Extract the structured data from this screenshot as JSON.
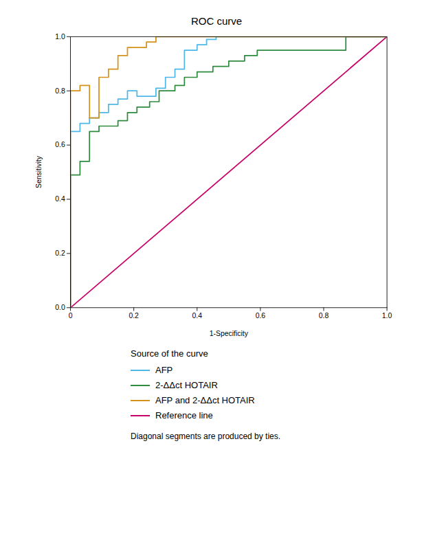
{
  "chart_data": {
    "type": "line",
    "title": "ROC curve",
    "xlabel": "1-Specificity",
    "ylabel": "Sensitivity",
    "xlim": [
      0,
      1.0
    ],
    "ylim": [
      0,
      1.0
    ],
    "xticks": [
      0,
      0.2,
      0.4,
      0.6,
      0.8,
      {
        "value": 1.0,
        "label": "1.0"
      }
    ],
    "yticks": [
      {
        "value": 0.0,
        "label": "0.0"
      },
      0.2,
      0.4,
      0.6,
      0.8,
      {
        "value": 1.0,
        "label": "1.0"
      }
    ],
    "grid": false,
    "legend": "bottom",
    "legend_title": "Source of the curve",
    "caption": "Diagonal segments are produced by ties.",
    "series": [
      {
        "name": "AFP",
        "color": "#4DB8E8",
        "x": [
          0.0,
          0.0,
          0.03,
          0.03,
          0.06,
          0.06,
          0.09,
          0.09,
          0.12,
          0.12,
          0.15,
          0.15,
          0.18,
          0.18,
          0.21,
          0.21,
          0.27,
          0.27,
          0.3,
          0.3,
          0.33,
          0.33,
          0.36,
          0.36,
          0.4,
          0.4,
          0.43,
          0.43,
          0.46,
          0.46,
          0.85,
          0.85,
          1.0
        ],
        "values": [
          0.0,
          0.65,
          0.65,
          0.68,
          0.68,
          0.7,
          0.7,
          0.72,
          0.72,
          0.75,
          0.75,
          0.77,
          0.77,
          0.8,
          0.8,
          0.78,
          0.78,
          0.81,
          0.81,
          0.85,
          0.85,
          0.88,
          0.88,
          0.95,
          0.95,
          0.97,
          0.97,
          0.99,
          0.99,
          1.0,
          1.0,
          1.0,
          1.0
        ]
      },
      {
        "name": "2-ΔΔct HOTAIR",
        "color": "#2E8B3E",
        "x": [
          0.0,
          0.0,
          0.03,
          0.03,
          0.06,
          0.06,
          0.09,
          0.09,
          0.15,
          0.15,
          0.18,
          0.18,
          0.21,
          0.21,
          0.25,
          0.25,
          0.28,
          0.28,
          0.33,
          0.33,
          0.36,
          0.36,
          0.4,
          0.4,
          0.45,
          0.45,
          0.5,
          0.5,
          0.55,
          0.55,
          0.59,
          0.59,
          0.87,
          0.87,
          1.0
        ],
        "values": [
          0.0,
          0.49,
          0.49,
          0.54,
          0.54,
          0.65,
          0.65,
          0.67,
          0.67,
          0.69,
          0.69,
          0.72,
          0.72,
          0.74,
          0.74,
          0.76,
          0.76,
          0.8,
          0.8,
          0.82,
          0.82,
          0.85,
          0.85,
          0.87,
          0.87,
          0.89,
          0.89,
          0.91,
          0.91,
          0.93,
          0.93,
          0.95,
          0.95,
          1.0,
          1.0
        ]
      },
      {
        "name": "AFP and 2-ΔΔct HOTAIR",
        "color": "#D4921A",
        "x": [
          0.0,
          0.0,
          0.03,
          0.03,
          0.06,
          0.06,
          0.09,
          0.09,
          0.12,
          0.12,
          0.15,
          0.15,
          0.18,
          0.18,
          0.24,
          0.24,
          0.27,
          0.27,
          0.3,
          0.3,
          0.35,
          0.35,
          1.0
        ],
        "values": [
          0.0,
          0.8,
          0.8,
          0.82,
          0.82,
          0.7,
          0.7,
          0.85,
          0.85,
          0.88,
          0.88,
          0.93,
          0.93,
          0.96,
          0.96,
          0.98,
          0.98,
          1.0,
          1.0,
          1.0,
          1.0,
          1.0,
          1.0
        ]
      },
      {
        "name": "Reference line",
        "color": "#C8006A",
        "x": [
          0,
          1
        ],
        "values": [
          0,
          1
        ]
      }
    ]
  }
}
